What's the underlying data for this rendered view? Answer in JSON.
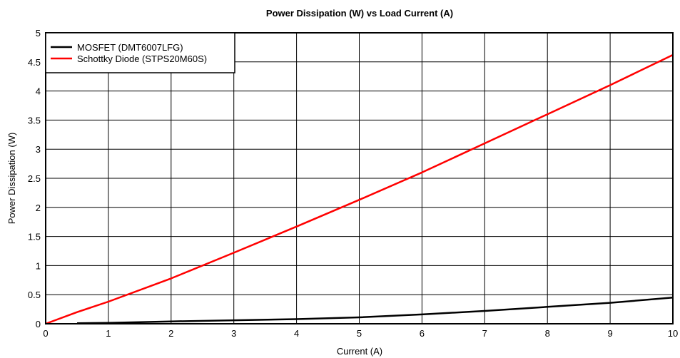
{
  "chart_data": {
    "type": "line",
    "title": "Power Dissipation (W) vs Load Current (A)",
    "xlabel": "Current (A)",
    "ylabel": "Power Dissipation (W)",
    "xlim": [
      0,
      10
    ],
    "ylim": [
      0,
      5
    ],
    "x_ticks": [
      "0",
      "1",
      "2",
      "3",
      "4",
      "5",
      "6",
      "7",
      "8",
      "9",
      "10"
    ],
    "y_ticks": [
      "0",
      "0.5",
      "1",
      "1.5",
      "2",
      "2.5",
      "3",
      "3.5",
      "4",
      "4.5",
      "5"
    ],
    "grid": true,
    "legend_position": "top-left",
    "series": [
      {
        "name": "MOSFET (DMT6007LFG)",
        "color": "#000000",
        "x": [
          0.5,
          1,
          2,
          3,
          4,
          5,
          6,
          7,
          8,
          9,
          10
        ],
        "y": [
          0.01,
          0.015,
          0.04,
          0.06,
          0.08,
          0.11,
          0.16,
          0.22,
          0.29,
          0.36,
          0.45
        ]
      },
      {
        "name": "Schottky Diode (STPS20M60S)",
        "color": "#ff0000",
        "x": [
          0,
          0.5,
          1,
          2,
          3,
          4,
          5,
          6,
          7,
          8,
          9,
          10
        ],
        "y": [
          0,
          0.2,
          0.38,
          0.78,
          1.22,
          1.67,
          2.13,
          2.6,
          3.1,
          3.6,
          4.1,
          4.62
        ]
      }
    ]
  }
}
